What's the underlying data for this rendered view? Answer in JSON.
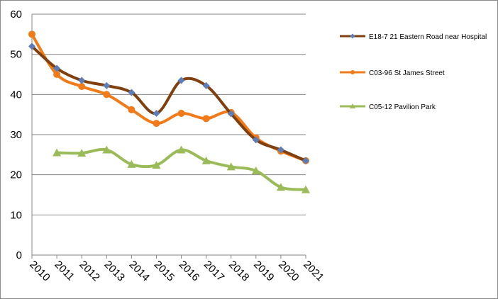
{
  "chart_data": {
    "type": "line",
    "title": "",
    "xlabel": "",
    "ylabel": "",
    "ylim": [
      0,
      60
    ],
    "yticks": [
      0,
      10,
      20,
      30,
      40,
      50,
      60
    ],
    "grid": true,
    "legend_position": "right",
    "x": [
      "2010",
      "2011",
      "2012",
      "2013",
      "2014",
      "2015",
      "2016",
      "2017",
      "2018",
      "2019",
      "2020",
      "2021"
    ],
    "series": [
      {
        "name": "E18-7 21 Eastern Road near Hospital",
        "color": "#7f3f0f",
        "marker": "diamond",
        "marker_color": "#5b7db8",
        "values": [
          52,
          46.5,
          43.5,
          42.2,
          40.5,
          35.3,
          43.5,
          42.2,
          35.2,
          28.7,
          26.2,
          23.5
        ]
      },
      {
        "name": "C03-96 St James Street",
        "color": "#f07b18",
        "marker": "circle",
        "marker_color": "#f07b18",
        "values": [
          55,
          45,
          42,
          40,
          36.2,
          32.8,
          35.3,
          34,
          35.5,
          29.2,
          25.9,
          23.5
        ]
      },
      {
        "name": "C05-12 Pavilion Park",
        "color": "#9bbb59",
        "marker": "triangle",
        "marker_color": "#9bbb59",
        "values": [
          null,
          25.5,
          25.4,
          26.2,
          22.6,
          22.4,
          26.2,
          23.5,
          22,
          21,
          16.9,
          16.3
        ]
      }
    ]
  }
}
